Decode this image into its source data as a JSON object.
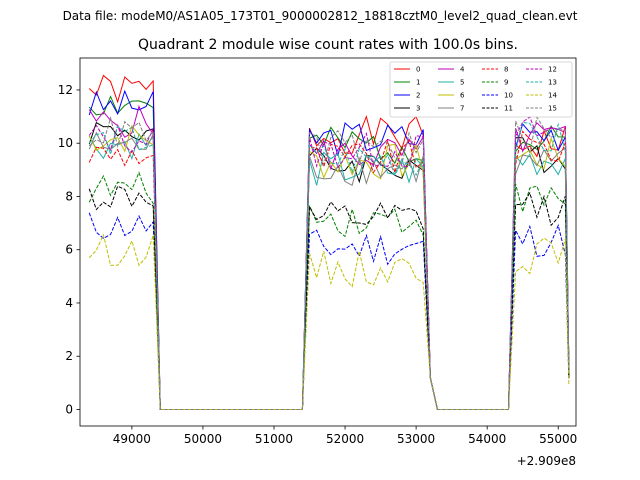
{
  "suptitle": "Data file: modeM0/AS1A05_173T01_9000002812_18818cztM0_level2_quad_clean.evt",
  "chart_data": {
    "type": "line",
    "title": "Quadrant 2 module wise count rates with 100.0s bins.",
    "xlabel": "",
    "ylabel": "",
    "offset_label": "+2.909e8",
    "xlim": [
      48270,
      55250
    ],
    "ylim": [
      -0.62,
      13.2
    ],
    "xticks": [
      49000,
      50000,
      51000,
      52000,
      53000,
      54000,
      55000
    ],
    "xtick_labels": [
      "49000",
      "50000",
      "51000",
      "52000",
      "53000",
      "54000",
      "55000"
    ],
    "yticks": [
      0,
      2,
      4,
      6,
      8,
      10,
      12
    ],
    "ytick_labels": [
      "0",
      "2",
      "4",
      "6",
      "8",
      "10",
      "12"
    ],
    "grid": false,
    "legend_position": "top-right",
    "legend_columns": 4,
    "x_segments": [
      {
        "start": 48400,
        "end": 49300
      },
      {
        "start": 49300,
        "end": 49400
      },
      {
        "start": 49400,
        "end": 51400
      },
      {
        "start": 51400,
        "end": 51500
      },
      {
        "start": 51500,
        "end": 53100
      },
      {
        "start": 53100,
        "end": 53300
      },
      {
        "start": 53300,
        "end": 54300
      },
      {
        "start": 54300,
        "end": 54400
      },
      {
        "start": 54400,
        "end": 55100
      },
      {
        "start": 55100,
        "end": 55150
      }
    ],
    "series": [
      {
        "name": "0",
        "color": "#ff0000",
        "dash": "solid",
        "level_a": 12.0,
        "level_b": 10.3,
        "level_c": 10.0,
        "end_value": 1.2
      },
      {
        "name": "1",
        "color": "#008000",
        "dash": "solid",
        "level_a": 11.5,
        "level_b": 9.9,
        "level_c": 10.0,
        "end_value": 1.5
      },
      {
        "name": "2",
        "color": "#0000ff",
        "dash": "solid",
        "level_a": 11.4,
        "level_b": 10.2,
        "level_c": 10.4,
        "end_value": 1.4
      },
      {
        "name": "3",
        "color": "#000000",
        "dash": "solid",
        "level_a": 10.5,
        "level_b": 9.2,
        "level_c": 9.6,
        "end_value": 1.3
      },
      {
        "name": "4",
        "color": "#bf00bf",
        "dash": "solid",
        "level_a": 10.8,
        "level_b": 9.6,
        "level_c": 10.2,
        "end_value": 1.6
      },
      {
        "name": "5",
        "color": "#20b2aa",
        "dash": "solid",
        "level_a": 10.0,
        "level_b": 9.0,
        "level_c": 9.4,
        "end_value": 1.5
      },
      {
        "name": "6",
        "color": "#bfbf00",
        "dash": "solid",
        "level_a": 10.2,
        "level_b": 9.3,
        "level_c": 9.5,
        "end_value": 1.6
      },
      {
        "name": "7",
        "color": "#808080",
        "dash": "solid",
        "level_a": 9.9,
        "level_b": 9.1,
        "level_c": 9.2,
        "end_value": 1.4
      },
      {
        "name": "8",
        "color": "#ff0000",
        "dash": "dashed",
        "level_a": 9.6,
        "level_b": 9.4,
        "level_c": 9.8,
        "end_value": 1.3
      },
      {
        "name": "9",
        "color": "#008000",
        "dash": "dashed",
        "level_a": 8.3,
        "level_b": 7.2,
        "level_c": 7.9,
        "end_value": 1.2
      },
      {
        "name": "10",
        "color": "#0000ff",
        "dash": "dashed",
        "level_a": 6.9,
        "level_b": 6.1,
        "level_c": 6.4,
        "end_value": 1.1
      },
      {
        "name": "11",
        "color": "#000000",
        "dash": "dashed",
        "level_a": 8.0,
        "level_b": 7.1,
        "level_c": 7.6,
        "end_value": 1.2
      },
      {
        "name": "12",
        "color": "#bf00bf",
        "dash": "dashed",
        "level_a": 10.2,
        "level_b": 9.7,
        "level_c": 10.4,
        "end_value": 1.5
      },
      {
        "name": "13",
        "color": "#20b2aa",
        "dash": "dashed",
        "level_a": 10.1,
        "level_b": 9.4,
        "level_c": 10.1,
        "end_value": 1.4
      },
      {
        "name": "14",
        "color": "#bfbf00",
        "dash": "dashed",
        "level_a": 6.0,
        "level_b": 5.3,
        "level_c": 5.8,
        "end_value": 0.9
      },
      {
        "name": "15",
        "color": "#808080",
        "dash": "dashed",
        "level_a": 10.4,
        "level_b": 9.8,
        "level_c": 10.3,
        "end_value": 1.5
      }
    ]
  }
}
